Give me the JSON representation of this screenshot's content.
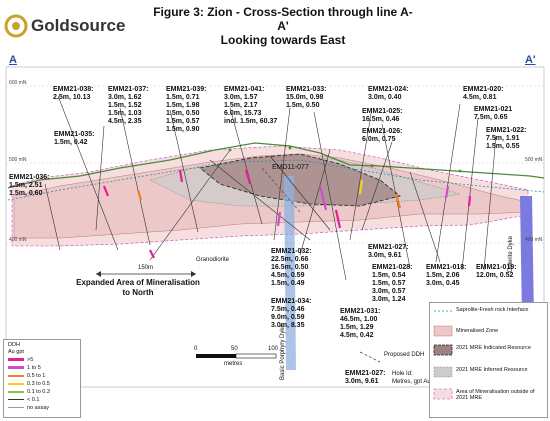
{
  "header": {
    "logo_text": "Goldsource",
    "title_line1": "Figure 3: Zion - Cross-Section through line A-A'",
    "title_line2": "Looking towards East",
    "section_left": "A",
    "section_right": "A'"
  },
  "rl_labels": [
    "600 mN",
    "500 mN",
    "400 mN",
    "500 mN",
    "400 mN"
  ],
  "holes": [
    {
      "name": "EMM21-038:",
      "line1": "2.5m, 10.13"
    },
    {
      "name": "EMM21-037:",
      "line1": "3.0m, 1.62",
      "line2": "1.5m, 1.52",
      "line3": "1.5m, 1.03",
      "line4": "4.5m, 2.35"
    },
    {
      "name": "EMM21-039:",
      "line1": "1.5m, 0.71",
      "line2": "1.5m, 1.98",
      "line3": "1.5m, 0.50",
      "line4": "1.5m, 0.57",
      "line5": "1.5m, 0.90"
    },
    {
      "name": "EMM21-041:",
      "line1": "3.0m, 1.57",
      "line2": "1.5m, 2.17",
      "line3": "6.0m, 15.73",
      "line4": "incl. 1.5m, 60.37"
    },
    {
      "name": "EMM21-033:",
      "line1": "15.0m, 0.98",
      "line2": "1.5m, 0.50"
    },
    {
      "name": "EMM21-024:",
      "line1": "3.0m, 0.40"
    },
    {
      "name": "EMM21-020:",
      "line1": "4.5m, 0.81"
    },
    {
      "name": "EMM21-025:",
      "line1": "16.5m, 0.46"
    },
    {
      "name": "EMM21-021",
      "line1": "7.5m, 0.65"
    },
    {
      "name": "EMM21-026:",
      "line1": "6.0m, 0.75"
    },
    {
      "name": "EMM21-022:",
      "line1": "7.5m, 1.91",
      "line2": "1.5m, 0.55"
    },
    {
      "name": "EMM21-035:",
      "line1": "1.5m, 0.42"
    },
    {
      "name": "EMM21-036:",
      "line1": "1.5m, 2.51",
      "line2": "1.5m, 0.60"
    },
    {
      "name": "EMM21-032:",
      "line1": "22.5m, 0.66",
      "line2": "16.5m, 0.50",
      "line3": "4.5m, 0.59",
      "line4": "1.5m, 0.49"
    },
    {
      "name": "EMM21-034:",
      "line1": "7.5m, 0.46",
      "line2": "9.0m, 0.59",
      "line3": "3.0m, 8.35"
    },
    {
      "name": "EMM21-031:",
      "line1": "46.5m, 1.00",
      "line2": "1.5m, 1.29",
      "line3": "4.5m, 0.42"
    },
    {
      "name": "EMM21-027:",
      "line1": "3.0m, 9.61"
    },
    {
      "name": "EMM21-028:",
      "line1": "1.5m, 0.54",
      "line2": "1.5m, 0.57",
      "line3": "3.0m, 0.57",
      "line4": "3.0m, 1.24"
    },
    {
      "name": "EMM21-018:",
      "line1": "1.5m, 2.06",
      "line2": "3.0m, 0.45"
    },
    {
      "name": "EMM21-019:",
      "line1": "12.0m, 0.52"
    }
  ],
  "labels": {
    "emd": "EMD11-077",
    "granodiorite": "Granodiorite",
    "expanded1": "Expanded Area of Mineralisation",
    "expanded2": "to North",
    "scale150": "150m",
    "porphyry": "Basic Porphyry Dyke",
    "dolerite": "Dolerite Dyke"
  },
  "scale_bar": {
    "t0": "0",
    "t50": "50",
    "t100": "100",
    "units": "metres"
  },
  "ddh_legend": {
    "title1": "DDH",
    "title2": "Au gpt",
    "rows": [
      {
        "label": ">5",
        "color": "#e61e9a"
      },
      {
        "label": "1    to  5",
        "color": "#d04bd0"
      },
      {
        "label": "0.5  to  1",
        "color": "#f08020"
      },
      {
        "label": "0.3  to  0.5",
        "color": "#f5d020"
      },
      {
        "label": "0.1  to  0.3",
        "color": "#90c050"
      },
      {
        "label": "< 0.1",
        "color": "#333333"
      },
      {
        "label": "no assay",
        "color": "#999999"
      }
    ]
  },
  "hole_key": {
    "proposed": "Proposed DDH",
    "example": "EMM21-027:",
    "example_val": "3.0m, 9.61",
    "hole_id": "Hole Id:",
    "units": "Metres, gpt Au"
  },
  "legend": {
    "saprolite": "Saprolite-Fresh rock Interface",
    "mineralised": "Mineralised Zone",
    "indicated": "2021 MRE Indicated Resource",
    "inferred": "2021 MRE Inferred Resource",
    "outside": "Area of Mineralisation outside of 2021 MRE"
  },
  "colors": {
    "mineralised": "#e8c8c8",
    "indicated": "#a08080",
    "inferred": "#cccccc",
    "dyke": "#8fb0e0",
    "dolerite": "#7a7ae0",
    "surface": "#4a8a3a",
    "outside": "#c040c0"
  }
}
